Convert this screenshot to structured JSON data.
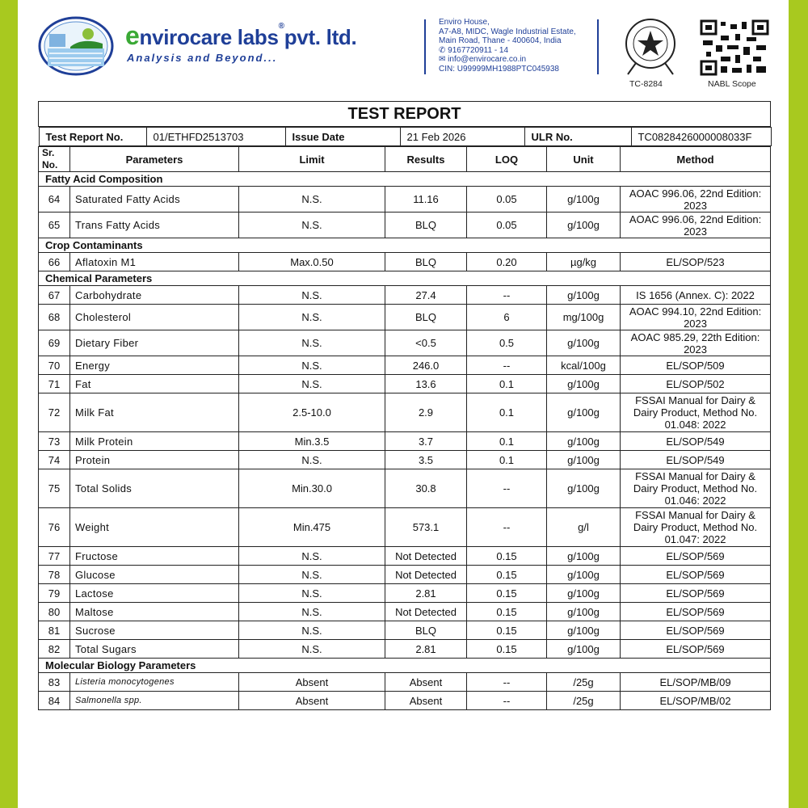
{
  "header": {
    "brand_e": "e",
    "brand_rest": "nvirocare labs",
    "brand_reg": "®",
    "brand_suffix": "pvt. ltd.",
    "tagline": "Analysis and Beyond...",
    "address": [
      "Enviro House,",
      "A7-A8, MIDC, Wagle Industrial Estate,",
      "Main Road, Thane - 400604, India"
    ],
    "phone": "9167720911 - 14",
    "email": "info@envirocare.co.in",
    "cin": "CIN: U99999MH1988PTC045938",
    "seal_caption": "TC-8284",
    "qr_caption": "NABL Scope",
    "accent_color": "#a8c91f",
    "brand_color": "#1f3f98",
    "brand_green": "#3aa935"
  },
  "report": {
    "title": "TEST REPORT",
    "report_no_label": "Test Report No.",
    "report_no": "01/ETHFD2513703",
    "issue_date_label": "Issue Date",
    "issue_date": "21 Feb 2026",
    "ulr_label": "ULR No.",
    "ulr": "TC0828426000008033F",
    "columns": [
      "Sr. No.",
      "Parameters",
      "Limit",
      "Results",
      "LOQ",
      "Unit",
      "Method"
    ]
  },
  "sections": [
    {
      "name": "Fatty Acid Composition",
      "rows": [
        {
          "sr": "64",
          "param": "Saturated Fatty Acids",
          "limit": "N.S.",
          "result": "11.16",
          "loq": "0.05",
          "unit": "g/100g",
          "method": "AOAC 996.06, 22nd Edition: 2023"
        },
        {
          "sr": "65",
          "param": "Trans Fatty Acids",
          "limit": "N.S.",
          "result": "BLQ",
          "loq": "0.05",
          "unit": "g/100g",
          "method": "AOAC 996.06, 22nd Edition: 2023"
        }
      ]
    },
    {
      "name": "Crop Contaminants",
      "rows": [
        {
          "sr": "66",
          "param": "Aflatoxin M1",
          "limit": "Max.0.50",
          "result": "BLQ",
          "loq": "0.20",
          "unit": "µg/kg",
          "method": "EL/SOP/523"
        }
      ]
    },
    {
      "name": "Chemical Parameters",
      "rows": [
        {
          "sr": "67",
          "param": "Carbohydrate",
          "limit": "N.S.",
          "result": "27.4",
          "loq": "--",
          "unit": "g/100g",
          "method": "IS 1656 (Annex. C): 2022"
        },
        {
          "sr": "68",
          "param": "Cholesterol",
          "limit": "N.S.",
          "result": "BLQ",
          "loq": "6",
          "unit": "mg/100g",
          "method": "AOAC 994.10, 22nd Edition: 2023"
        },
        {
          "sr": "69",
          "param": "Dietary Fiber",
          "limit": "N.S.",
          "result": "<0.5",
          "loq": "0.5",
          "unit": "g/100g",
          "method": "AOAC 985.29, 22th Edition: 2023"
        },
        {
          "sr": "70",
          "param": "Energy",
          "limit": "N.S.",
          "result": "246.0",
          "loq": "--",
          "unit": "kcal/100g",
          "method": "EL/SOP/509"
        },
        {
          "sr": "71",
          "param": "Fat",
          "limit": "N.S.",
          "result": "13.6",
          "loq": "0.1",
          "unit": "g/100g",
          "method": "EL/SOP/502"
        },
        {
          "sr": "72",
          "param": "Milk Fat",
          "limit": "2.5-10.0",
          "result": "2.9",
          "loq": "0.1",
          "unit": "g/100g",
          "method": "FSSAI Manual for Dairy & Dairy Product, Method No. 01.048: 2022"
        },
        {
          "sr": "73",
          "param": "Milk Protein",
          "limit": "Min.3.5",
          "result": "3.7",
          "loq": "0.1",
          "unit": "g/100g",
          "method": "EL/SOP/549"
        },
        {
          "sr": "74",
          "param": "Protein",
          "limit": "N.S.",
          "result": "3.5",
          "loq": "0.1",
          "unit": "g/100g",
          "method": "EL/SOP/549"
        },
        {
          "sr": "75",
          "param": "Total Solids",
          "limit": "Min.30.0",
          "result": "30.8",
          "loq": "--",
          "unit": "g/100g",
          "method": "FSSAI Manual for Dairy & Dairy Product, Method No. 01.046: 2022"
        },
        {
          "sr": "76",
          "param": "Weight",
          "limit": "Min.475",
          "result": "573.1",
          "loq": "--",
          "unit": "g/l",
          "method": "FSSAI Manual for Dairy & Dairy Product, Method No. 01.047: 2022"
        },
        {
          "sr": "77",
          "param": "Fructose",
          "limit": "N.S.",
          "result": "Not Detected",
          "loq": "0.15",
          "unit": "g/100g",
          "method": "EL/SOP/569"
        },
        {
          "sr": "78",
          "param": "Glucose",
          "limit": "N.S.",
          "result": "Not Detected",
          "loq": "0.15",
          "unit": "g/100g",
          "method": "EL/SOP/569"
        },
        {
          "sr": "79",
          "param": "Lactose",
          "limit": "N.S.",
          "result": "2.81",
          "loq": "0.15",
          "unit": "g/100g",
          "method": "EL/SOP/569"
        },
        {
          "sr": "80",
          "param": "Maltose",
          "limit": "N.S.",
          "result": "Not Detected",
          "loq": "0.15",
          "unit": "g/100g",
          "method": "EL/SOP/569"
        },
        {
          "sr": "81",
          "param": "Sucrose",
          "limit": "N.S.",
          "result": "BLQ",
          "loq": "0.15",
          "unit": "g/100g",
          "method": "EL/SOP/569"
        },
        {
          "sr": "82",
          "param": "Total Sugars",
          "limit": "N.S.",
          "result": "2.81",
          "loq": "0.15",
          "unit": "g/100g",
          "method": "EL/SOP/569"
        }
      ]
    },
    {
      "name": "Molecular Biology Parameters",
      "rows": [
        {
          "sr": "83",
          "param": "Listeria monocytogenes",
          "limit": "Absent",
          "result": "Absent",
          "loq": "--",
          "unit": "/25g",
          "method": "EL/SOP/MB/09",
          "italic": true
        },
        {
          "sr": "84",
          "param": "Salmonella spp.",
          "limit": "Absent",
          "result": "Absent",
          "loq": "--",
          "unit": "/25g",
          "method": "EL/SOP/MB/02",
          "italic": true
        }
      ]
    }
  ]
}
